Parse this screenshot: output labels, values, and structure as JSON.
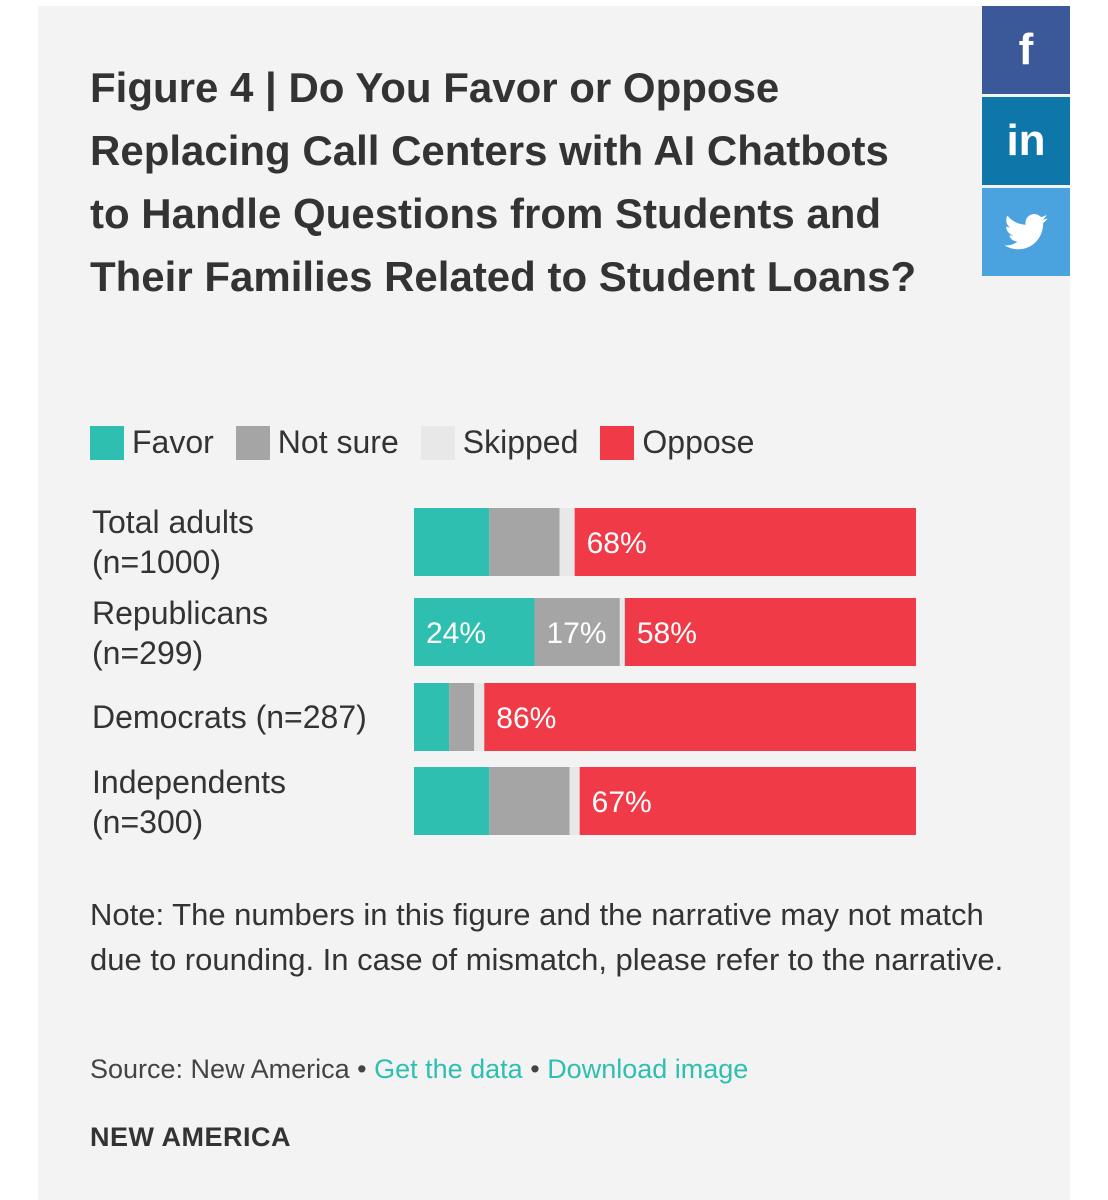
{
  "share": {
    "facebook": "f",
    "linkedin": "in",
    "twitter_icon": "twitter-bird"
  },
  "title": "Figure 4 | Do You Favor or Oppose Replacing Call Centers with AI Chatbots to Handle Questions from Students and Their Families Related to Student Loans?",
  "note": "Note: The numbers in this figure and the narrative may not match due to rounding. In case of mismatch, please refer to the narrative.",
  "source": {
    "label": "Source: New America",
    "bullet": "•",
    "get_data": "Get the data",
    "download": "Download image"
  },
  "brand": "NEW AMERICA",
  "colors": {
    "favor": "#2ebfb1",
    "not_sure": "#a5a5a5",
    "skipped": "#e8e8e8",
    "oppose": "#f03a47"
  },
  "chart_data": {
    "type": "bar",
    "orientation": "horizontal",
    "stacked": true,
    "legend": [
      "Favor",
      "Not sure",
      "Skipped",
      "Oppose"
    ],
    "legend_placement": "top",
    "categories": [
      [
        "Total adults",
        "(n=1000)"
      ],
      [
        "Republicans",
        "(n=299)"
      ],
      [
        "Democrats (n=287)"
      ],
      [
        "Independents",
        "(n=300)"
      ]
    ],
    "series": [
      {
        "name": "Favor",
        "values": [
          15,
          24,
          7,
          15
        ],
        "labels": [
          "",
          "24%",
          "",
          ""
        ]
      },
      {
        "name": "Not sure",
        "values": [
          14,
          17,
          5,
          16
        ],
        "labels": [
          "",
          "17%",
          "",
          ""
        ]
      },
      {
        "name": "Skipped",
        "values": [
          3,
          1,
          2,
          2
        ],
        "labels": [
          "",
          "",
          "",
          ""
        ]
      },
      {
        "name": "Oppose",
        "values": [
          68,
          58,
          86,
          67
        ],
        "labels": [
          "68%",
          "58%",
          "86%",
          "67%"
        ]
      }
    ],
    "xlim": [
      0,
      100
    ]
  }
}
